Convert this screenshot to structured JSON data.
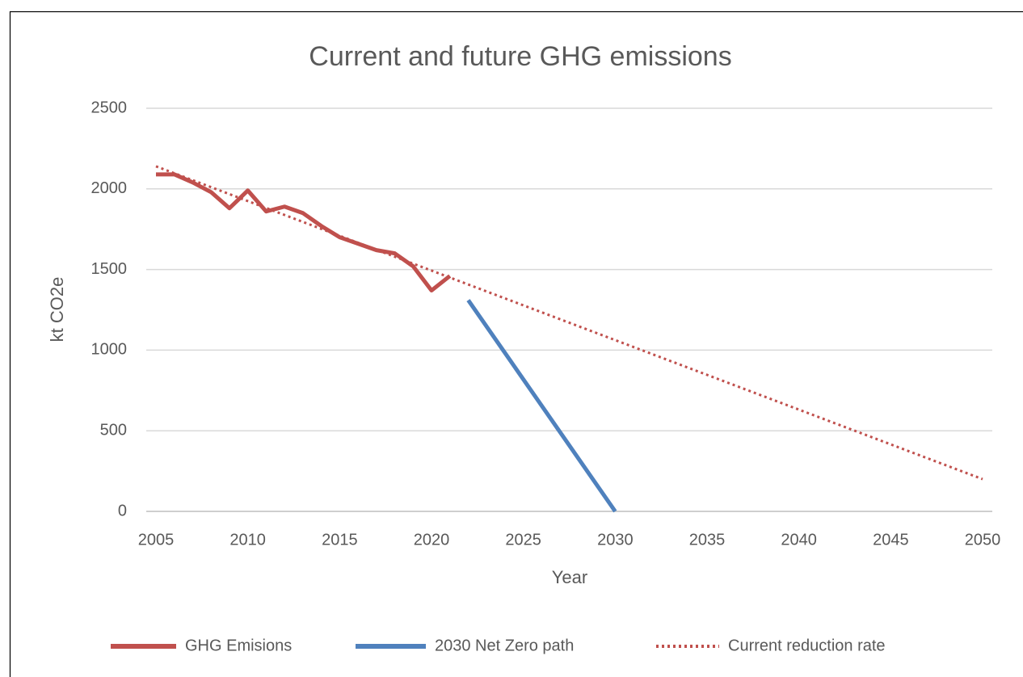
{
  "chart_data": {
    "type": "line",
    "title": "Current and future GHG emissions",
    "x_label": "Year",
    "y_label": "kt CO2e",
    "xlim": [
      2005,
      2050
    ],
    "xticks": [
      2005,
      2010,
      2015,
      2020,
      2025,
      2030,
      2035,
      2040,
      2045,
      2050
    ],
    "ylim": [
      0,
      2500
    ],
    "yticks": [
      0,
      500,
      1000,
      1500,
      2000,
      2500
    ],
    "grid": true,
    "legend": "bottom",
    "series": [
      {
        "name": "GHG Emisions",
        "color": "#c0504d",
        "style": "solid",
        "x": [
          2005,
          2006,
          2007,
          2008,
          2009,
          2010,
          2011,
          2012,
          2013,
          2014,
          2015,
          2016,
          2017,
          2018,
          2019,
          2020,
          2021
        ],
        "values": [
          2090,
          2090,
          2040,
          1980,
          1880,
          1990,
          1860,
          1890,
          1850,
          1770,
          1700,
          1660,
          1620,
          1600,
          1520,
          1370,
          1460
        ]
      },
      {
        "name": "2030 Net Zero path",
        "color": "#4f81bd",
        "style": "solid",
        "x": [
          2022,
          2030
        ],
        "values": [
          1310,
          0
        ]
      },
      {
        "name": "Current reduction rate",
        "color": "#c0504d",
        "style": "dotted",
        "x": [
          2005,
          2050
        ],
        "values": [
          2140,
          200
        ]
      }
    ]
  }
}
